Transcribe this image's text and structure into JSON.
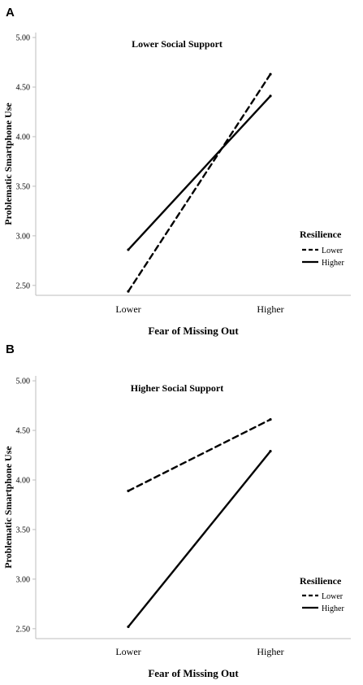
{
  "colors": {
    "background": "#ffffff",
    "line": "#000000",
    "axis": "#bdbdbd"
  },
  "chart_data": [
    {
      "type": "line",
      "panel_label": "A",
      "title": "Lower Social Support",
      "xlabel": "Fear of Missing Out",
      "ylabel": "Problematic Smartphone Use",
      "categories": [
        "Lower",
        "Higher"
      ],
      "ylim": [
        2.4,
        5.05
      ],
      "yticks": [
        "2.50",
        "3.00",
        "3.50",
        "4.00",
        "4.50",
        "5.00"
      ],
      "grid": false,
      "legend": {
        "title": "Resilience",
        "position": "right"
      },
      "series": [
        {
          "name": "Lower",
          "style": "dashed",
          "values": [
            2.44,
            4.63
          ]
        },
        {
          "name": "Higher",
          "style": "solid",
          "values": [
            2.86,
            4.41
          ]
        }
      ]
    },
    {
      "type": "line",
      "panel_label": "B",
      "title": "Higher Social Support",
      "xlabel": "Fear of Missing Out",
      "ylabel": "Problematic Smartphone Use",
      "categories": [
        "Lower",
        "Higher"
      ],
      "ylim": [
        2.4,
        5.05
      ],
      "yticks": [
        "2.50",
        "3.00",
        "3.50",
        "4.00",
        "4.50",
        "5.00"
      ],
      "grid": false,
      "legend": {
        "title": "Resilience",
        "position": "right"
      },
      "series": [
        {
          "name": "Lower",
          "style": "dashed",
          "values": [
            3.89,
            4.61
          ]
        },
        {
          "name": "Higher",
          "style": "solid",
          "values": [
            2.52,
            4.29
          ]
        }
      ]
    }
  ]
}
